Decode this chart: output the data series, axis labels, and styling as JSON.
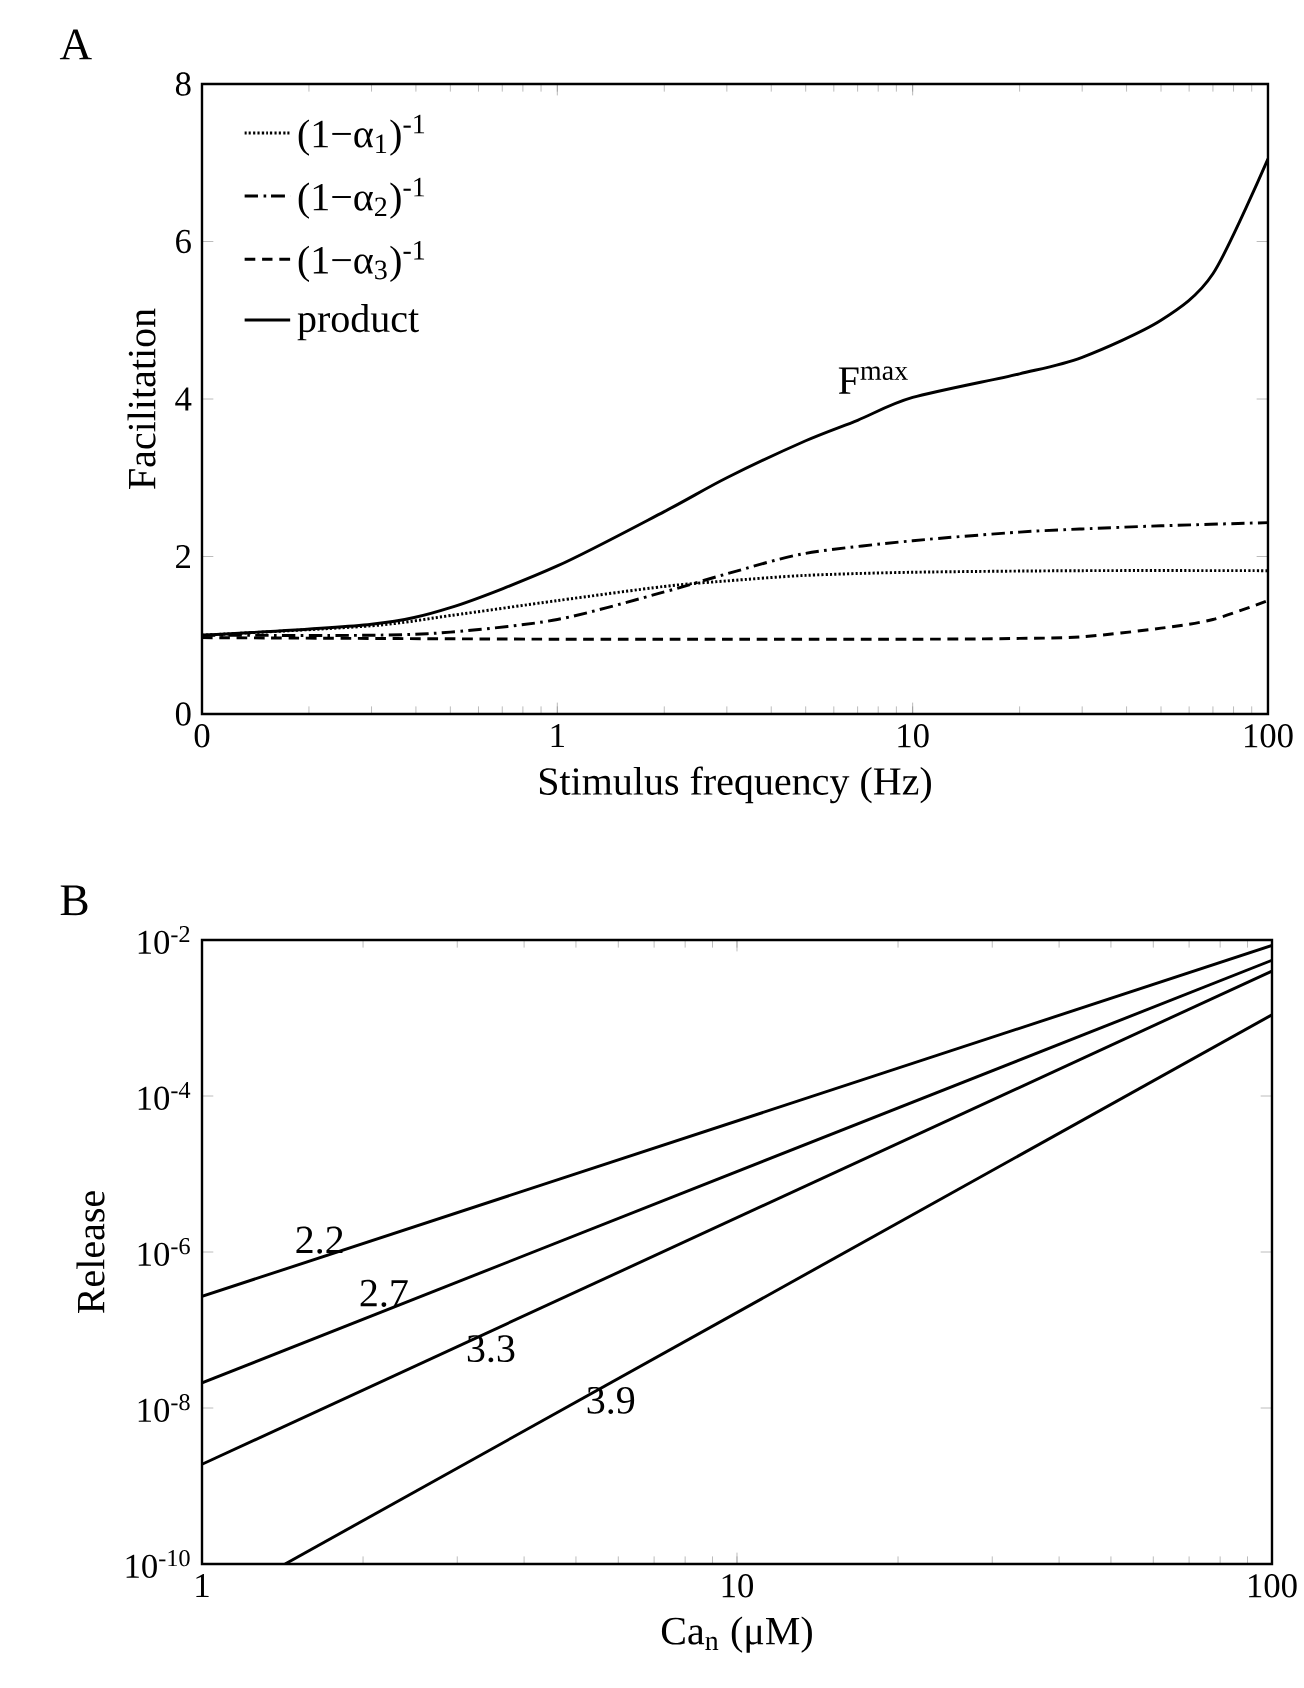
{
  "chart_data": [
    {
      "type": "line",
      "title": "A",
      "xlabel": "Stimulus frequency (Hz)",
      "ylabel": "Facilitation",
      "log": "x",
      "xlim": [
        0.1,
        100
      ],
      "xticks": [
        {
          "value": 0.1,
          "label": "0"
        },
        1,
        10,
        100
      ],
      "ylim": [
        0,
        8
      ],
      "yticks": [
        0,
        2,
        4,
        6,
        8
      ],
      "grid": false,
      "legend": "top left",
      "marker": "none",
      "series": [
        {
          "name": "(1−α$_{1}$)$^{-1}$",
          "color": "#000000",
          "line_style": "dotted",
          "x": [
            0.1,
            0.3,
            0.5,
            1,
            2,
            3,
            5,
            10,
            30,
            100
          ],
          "values": [
            1.0,
            1.12,
            1.25,
            1.44,
            1.62,
            1.69,
            1.76,
            1.8,
            1.82,
            1.82
          ]
        },
        {
          "name": "(1−α$_{2}$)$^{-1}$",
          "color": "#000000",
          "line_style": "dashdot",
          "x": [
            0.1,
            0.3,
            0.5,
            1,
            2,
            3,
            5,
            10,
            20,
            30,
            50,
            100
          ],
          "values": [
            1.0,
            1.0,
            1.04,
            1.2,
            1.55,
            1.78,
            2.04,
            2.2,
            2.31,
            2.35,
            2.39,
            2.43
          ]
        },
        {
          "name": "(1−α$_{3}$)$^{-1}$",
          "color": "#000000",
          "line_style": "dashed",
          "x": [
            0.1,
            1,
            10,
            20,
            30,
            50,
            70,
            100
          ],
          "values": [
            0.97,
            0.95,
            0.95,
            0.96,
            0.98,
            1.09,
            1.2,
            1.44
          ]
        },
        {
          "name": "product",
          "color": "#000000",
          "line_style": "solid",
          "x": [
            0.1,
            0.3,
            0.5,
            1,
            2,
            3,
            5,
            7,
            10,
            20,
            30,
            50,
            70,
            100
          ],
          "values": [
            1.0,
            1.14,
            1.35,
            1.88,
            2.57,
            3.0,
            3.47,
            3.73,
            4.02,
            4.32,
            4.53,
            5.0,
            5.59,
            7.05
          ]
        }
      ],
      "annotations": [
        "F$^{max}$"
      ]
    },
    {
      "type": "line",
      "title": "B",
      "xlabel": "Ca$_{n}$ (μM)",
      "ylabel": "Release",
      "log": "xy",
      "xlim": [
        1,
        100
      ],
      "xticks": [
        1,
        10,
        100
      ],
      "ylim": [
        1e-10,
        0.01
      ],
      "yticks": [
        {
          "value": 1e-10,
          "label": "10$^{-10}$"
        },
        {
          "value": 1e-08,
          "label": "10$^{-8}$"
        },
        {
          "value": 1e-06,
          "label": "10$^{-6}$"
        },
        {
          "value": 0.0001,
          "label": "10$^{-4}$"
        },
        {
          "value": 0.01,
          "label": "10$^{-2}$"
        }
      ],
      "grid": false,
      "legend": false,
      "marker": "none",
      "line_style": "solid",
      "series": [
        {
          "name": "2.2",
          "color": "#000000",
          "x": [
            1,
            100
          ],
          "values": [
            2.7e-07,
            0.0085
          ]
        },
        {
          "name": "2.7",
          "color": "#000000",
          "x": [
            1,
            100
          ],
          "values": [
            2.1e-08,
            0.0055
          ]
        },
        {
          "name": "3.3",
          "color": "#000000",
          "x": [
            1,
            100
          ],
          "values": [
            1.9e-09,
            0.004
          ]
        },
        {
          "name": "3.9",
          "color": "#000000",
          "x": [
            1.43,
            100
          ],
          "values": [
            1e-10,
            0.0011
          ]
        }
      ]
    }
  ]
}
